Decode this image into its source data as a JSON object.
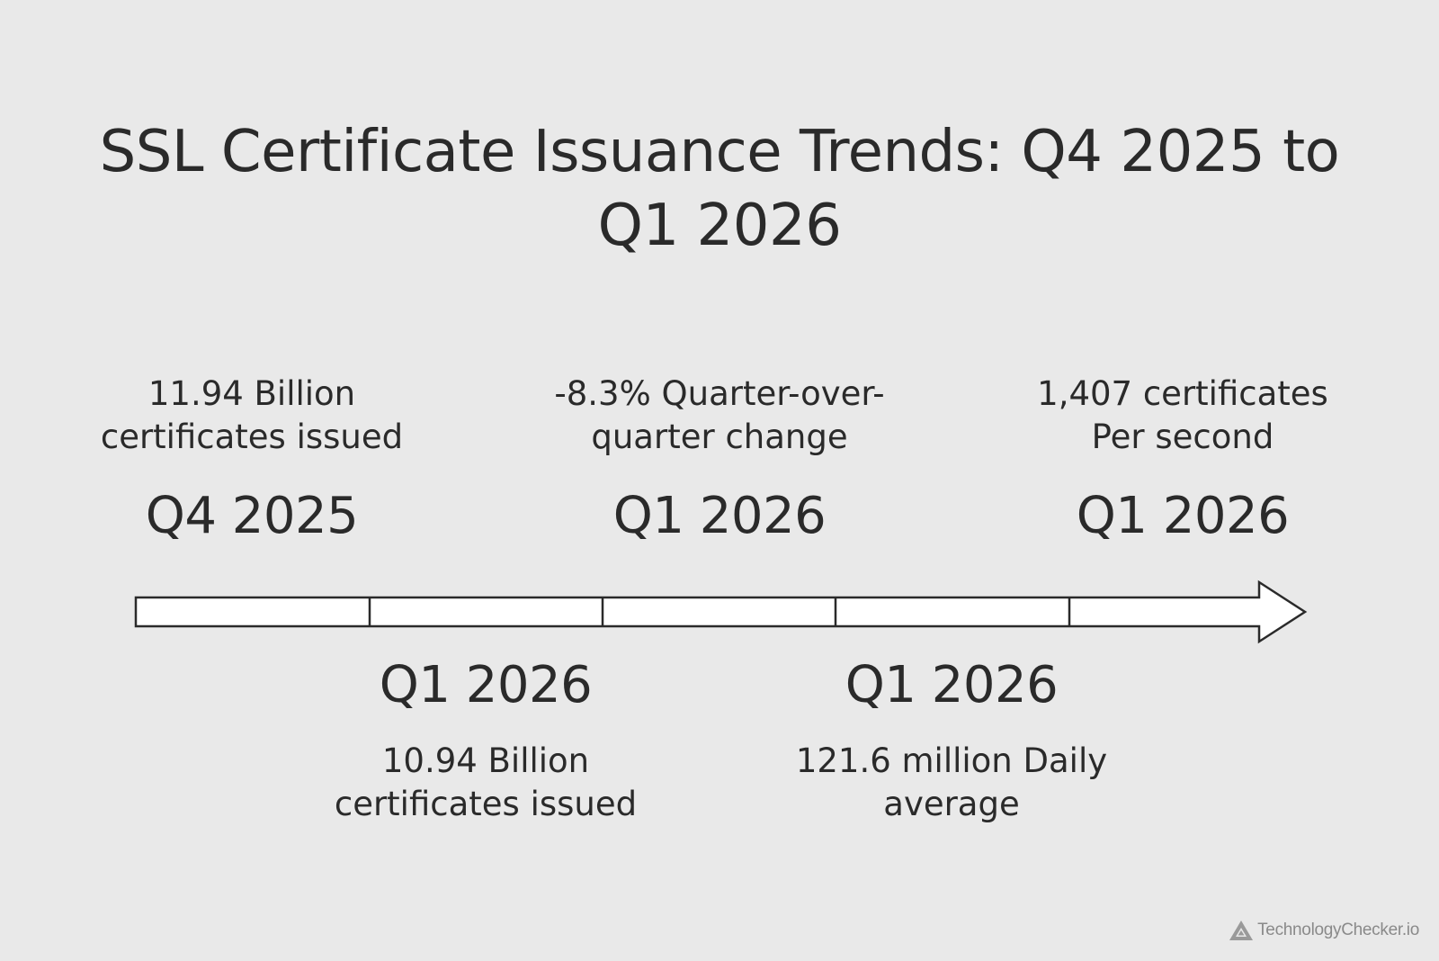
{
  "title": {
    "line1": "SSL Certificate Issuance Trends: Q4 2025 to",
    "line2": "Q1 2026"
  },
  "milestones": [
    {
      "position": "top",
      "label": "Q4 2025",
      "desc_line1": "11.94 Billion",
      "desc_line2": "certificates issued"
    },
    {
      "position": "bottom",
      "label": "Q1 2026",
      "desc_line1": "10.94 Billion",
      "desc_line2": "certificates issued"
    },
    {
      "position": "top",
      "label": "Q1 2026",
      "desc_line1": "-8.3% Quarter-over-",
      "desc_line2": "quarter change"
    },
    {
      "position": "bottom",
      "label": "Q1 2026",
      "desc_line1": "121.6 million Daily",
      "desc_line2": "average"
    },
    {
      "position": "top",
      "label": "Q1 2026",
      "desc_line1": "1,407 certificates",
      "desc_line2": "Per second"
    }
  ],
  "watermark": {
    "text": "TechnologyChecker.io",
    "icon": "triangle-logo-icon"
  },
  "colors": {
    "background": "#e9e9e9",
    "text": "#2a2a2a",
    "arrow_fill": "#ffffff",
    "arrow_stroke": "#2a2a2a",
    "watermark": "#8a8a8a"
  }
}
